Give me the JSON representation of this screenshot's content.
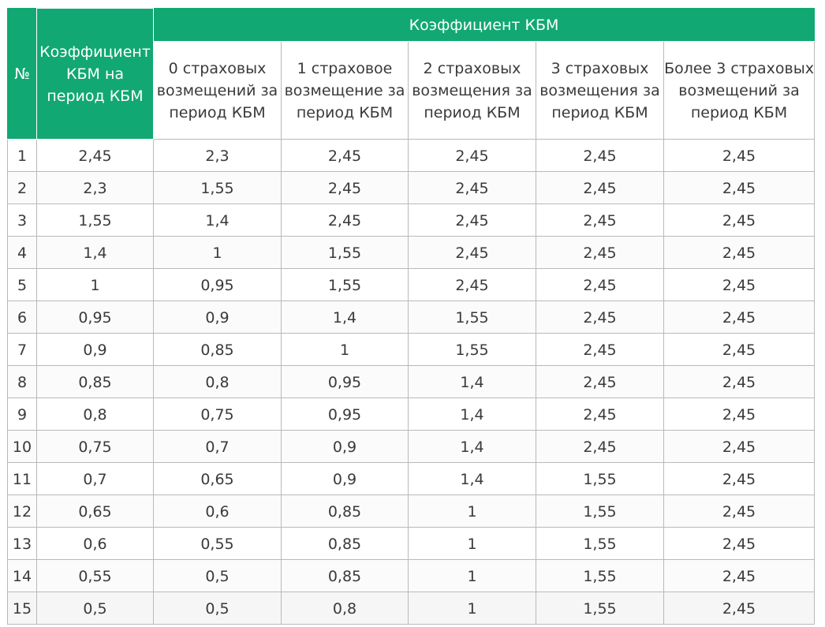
{
  "table": {
    "header": {
      "num": "№",
      "kbm_period": "Коэффициент КБМ на период КБМ",
      "group": "Коэффициент КБМ",
      "columns": [
        "0 страховых возмещений за период КБМ",
        "1 страховое возмещение за период КБМ",
        "2 страховых возмещения за период КБМ",
        "3 страховых возмещения за период КБМ",
        "Более 3 страховых возмещений за период КБМ"
      ]
    },
    "rows": [
      [
        "1",
        "2,45",
        "2,3",
        "2,45",
        "2,45",
        "2,45",
        "2,45"
      ],
      [
        "2",
        "2,3",
        "1,55",
        "2,45",
        "2,45",
        "2,45",
        "2,45"
      ],
      [
        "3",
        "1,55",
        "1,4",
        "2,45",
        "2,45",
        "2,45",
        "2,45"
      ],
      [
        "4",
        "1,4",
        "1",
        "1,55",
        "2,45",
        "2,45",
        "2,45"
      ],
      [
        "5",
        "1",
        "0,95",
        "1,55",
        "2,45",
        "2,45",
        "2,45"
      ],
      [
        "6",
        "0,95",
        "0,9",
        "1,4",
        "1,55",
        "2,45",
        "2,45"
      ],
      [
        "7",
        "0,9",
        "0,85",
        "1",
        "1,55",
        "2,45",
        "2,45"
      ],
      [
        "8",
        "0,85",
        "0,8",
        "0,95",
        "1,4",
        "2,45",
        "2,45"
      ],
      [
        "9",
        "0,8",
        "0,75",
        "0,95",
        "1,4",
        "2,45",
        "2,45"
      ],
      [
        "10",
        "0,75",
        "0,7",
        "0,9",
        "1,4",
        "2,45",
        "2,45"
      ],
      [
        "11",
        "0,7",
        "0,65",
        "0,9",
        "1,4",
        "1,55",
        "2,45"
      ],
      [
        "12",
        "0,65",
        "0,6",
        "0,85",
        "1",
        "1,55",
        "2,45"
      ],
      [
        "13",
        "0,6",
        "0,55",
        "0,85",
        "1",
        "1,55",
        "2,45"
      ],
      [
        "14",
        "0,55",
        "0,5",
        "0,85",
        "1",
        "1,55",
        "2,45"
      ],
      [
        "15",
        "0,5",
        "0,5",
        "0,8",
        "1",
        "1,55",
        "2,45"
      ]
    ],
    "colors": {
      "header_green": "#12a873",
      "border": "#b9b9b9",
      "text": "#3a3a3a"
    }
  }
}
